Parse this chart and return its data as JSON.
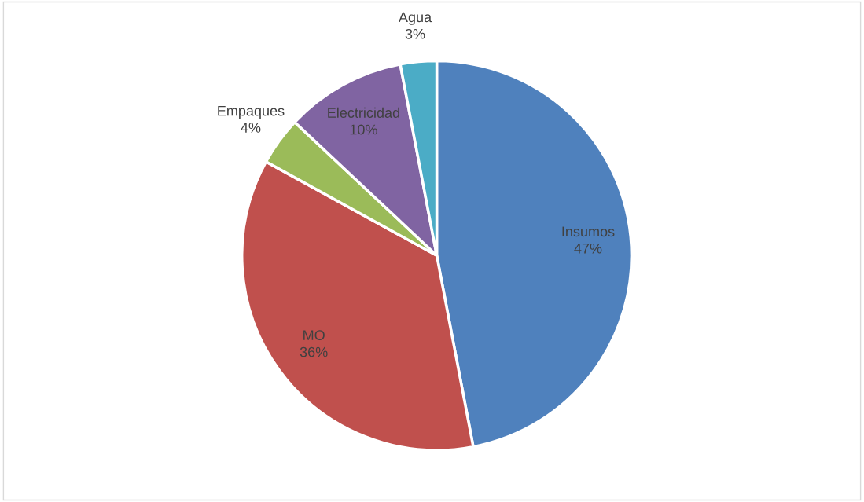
{
  "chart_data": {
    "type": "pie",
    "categories": [
      "Insumos",
      "MO",
      "Empaques",
      "Electricidad",
      "Agua"
    ],
    "values": [
      47,
      36,
      4,
      10,
      3
    ],
    "colors": [
      "#4f81bd",
      "#c0504d",
      "#9bbb59",
      "#8064a2",
      "#4bacc6"
    ],
    "value_labels": [
      "47%",
      "36%",
      "4%",
      "10%",
      "3%"
    ]
  }
}
